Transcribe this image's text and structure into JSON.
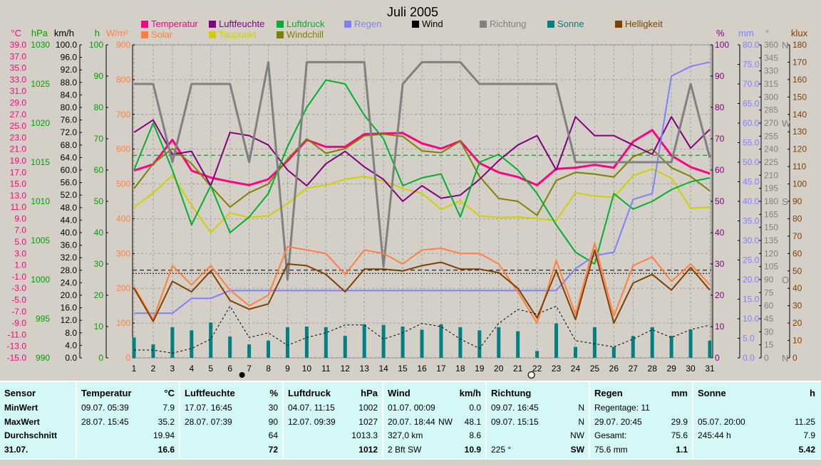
{
  "chart_data": {
    "type": "line",
    "title": "Juli 2005",
    "x": [
      1,
      2,
      3,
      4,
      5,
      6,
      7,
      8,
      9,
      10,
      11,
      12,
      13,
      14,
      15,
      16,
      17,
      18,
      19,
      20,
      21,
      22,
      23,
      24,
      25,
      26,
      27,
      28,
      29,
      30,
      31
    ],
    "x_labels": [
      "1",
      "2",
      "3",
      "4",
      "5",
      "6",
      "7",
      "8",
      "9",
      "10",
      "11",
      "12",
      "13",
      "14",
      "15",
      "16",
      "17",
      "18",
      "19",
      "20",
      "21",
      "22",
      "23",
      "24",
      "25",
      "26",
      "27",
      "28",
      "29",
      "30",
      "31"
    ],
    "legend": [
      {
        "name": "Temperatur",
        "color": "#ff0080"
      },
      {
        "name": "Luftfeuchte",
        "color": "#800080"
      },
      {
        "name": "Luftdruck",
        "color": "#00b030"
      },
      {
        "name": "Regen",
        "color": "#8080ff"
      },
      {
        "name": "Wind",
        "color": "#000000"
      },
      {
        "name": "Richtung",
        "color": "#808080"
      },
      {
        "name": "Sonne",
        "color": "#008080"
      },
      {
        "name": "Helligkeit",
        "color": "#804000"
      },
      {
        "name": "Solar",
        "color": "#ff8040"
      },
      {
        "name": "Taupunkt",
        "color": "#d0d000"
      },
      {
        "name": "Windchill",
        "color": "#808000"
      }
    ],
    "axes": {
      "temp": {
        "label": "°C",
        "color": "#ff0080",
        "min": -15,
        "max": 39,
        "ticks": [
          "39.0",
          "37.0",
          "35.0",
          "33.0",
          "31.0",
          "29.0",
          "27.0",
          "25.0",
          "23.0",
          "21.0",
          "19.0",
          "17.0",
          "15.0",
          "13.0",
          "11.0",
          "9.0",
          "7.0",
          "5.0",
          "3.0",
          "1.0",
          "-1.0",
          "-3.0",
          "-5.0",
          "-7.0",
          "-9.0",
          "-11.0",
          "-13.0",
          "-15.0"
        ]
      },
      "press": {
        "label": "hPa",
        "color": "#00a000",
        "min": 990,
        "max": 1030,
        "ticks": [
          "1030",
          "1025",
          "1020",
          "1015",
          "1010",
          "1005",
          "1000",
          "995",
          "990"
        ]
      },
      "wind": {
        "label": "km/h",
        "color": "#000000",
        "min": 0,
        "max": 100,
        "ticks": [
          "100.0",
          "96.0",
          "92.0",
          "88.0",
          "84.0",
          "80.0",
          "76.0",
          "72.0",
          "68.0",
          "64.0",
          "60.0",
          "56.0",
          "52.0",
          "48.0",
          "44.0",
          "40.0",
          "36.0",
          "32.0",
          "28.0",
          "24.0",
          "20.0",
          "16.0",
          "12.0",
          "8.0",
          "4.0",
          "0.0"
        ]
      },
      "sun": {
        "label": "h",
        "color": "#00a000",
        "min": 0,
        "max": 100,
        "ticks": [
          "100",
          "90",
          "80",
          "70",
          "60",
          "50",
          "40",
          "30",
          "20",
          "10",
          "0"
        ]
      },
      "solar": {
        "label": "W/m²",
        "color": "#ff8040",
        "min": 0,
        "max": 900,
        "ticks": [
          "900",
          "800",
          "700",
          "600",
          "500",
          "400",
          "300",
          "200",
          "100",
          "0"
        ]
      },
      "hum": {
        "label": "%",
        "color": "#800080",
        "min": 0,
        "max": 100,
        "ticks": [
          "100",
          "90",
          "80",
          "70",
          "60",
          "50",
          "40",
          "30",
          "20",
          "10",
          "0"
        ]
      },
      "rain": {
        "label": "mm",
        "color": "#8080ff",
        "min": 0,
        "max": 80,
        "ticks": [
          "80.0",
          "75.0",
          "70.0",
          "65.0",
          "60.0",
          "55.0",
          "50.0",
          "45.0",
          "40.0",
          "35.0",
          "30.0",
          "25.0",
          "20.0",
          "15.0",
          "10.0",
          "5.0",
          "0.0"
        ]
      },
      "dir": {
        "label": "°",
        "color": "#808080",
        "min": 0,
        "max": 360,
        "ticks": [
          "360",
          "345",
          "330",
          "315",
          "300",
          "285",
          "270",
          "255",
          "240",
          "225",
          "210",
          "195",
          "180",
          "165",
          "150",
          "135",
          "120",
          "105",
          "90",
          "75",
          "60",
          "45",
          "30",
          "15",
          "0"
        ],
        "compass": [
          {
            "label": "N",
            "value": 360
          },
          {
            "label": "W",
            "value": 270
          },
          {
            "label": "S",
            "value": 180
          },
          {
            "label": "O",
            "value": 90
          },
          {
            "label": "N",
            "value": 0
          }
        ]
      },
      "lux": {
        "label": "klux",
        "color": "#804000",
        "min": 0,
        "max": 180,
        "ticks": [
          "180",
          "170",
          "160",
          "150",
          "140",
          "130",
          "120",
          "110",
          "100",
          "90",
          "80",
          "70",
          "60",
          "50",
          "40",
          "30",
          "20",
          "10",
          "0"
        ]
      }
    },
    "series": [
      {
        "name": "Temperatur",
        "axis": "temp",
        "color": "#ff0080",
        "width": 3,
        "values": [
          17.3,
          18.4,
          22.6,
          17.3,
          16.1,
          15.4,
          14.8,
          15.8,
          19.0,
          22.6,
          21.4,
          21.4,
          23.6,
          23.7,
          23.8,
          22.0,
          21.1,
          22.4,
          18.6,
          17.0,
          16.2,
          14.8,
          17.6,
          17.8,
          18.3,
          17.8,
          22.3,
          24.3,
          19.9,
          17.9,
          16.8
        ]
      },
      {
        "name": "Taupunkt",
        "axis": "temp",
        "color": "#d0d000",
        "width": 2,
        "values": [
          11.0,
          13.4,
          16.5,
          11.3,
          6.6,
          10.0,
          9.2,
          9.5,
          11.6,
          14.3,
          14.8,
          15.8,
          16.3,
          15.5,
          14.2,
          13.4,
          10.6,
          12.1,
          9.5,
          9.2,
          9.3,
          9.0,
          8.7,
          13.5,
          12.9,
          12.7,
          16.4,
          17.6,
          16.0,
          10.8,
          11.0
        ]
      },
      {
        "name": "Windchill",
        "axis": "temp",
        "color": "#808000",
        "width": 2,
        "values": [
          14.2,
          18.5,
          21.1,
          18.5,
          14.6,
          11.0,
          13.5,
          15.0,
          19.3,
          22.8,
          20.3,
          21.1,
          23.3,
          23.6,
          23.2,
          20.7,
          20.4,
          22.4,
          16.3,
          12.5,
          12.0,
          9.6,
          15.6,
          17.0,
          16.7,
          16.2,
          19.7,
          21.0,
          17.8,
          16.3,
          13.8
        ]
      },
      {
        "name": "Luftfeuchte",
        "axis": "hum",
        "color": "#800080",
        "width": 2,
        "values": [
          72,
          76,
          65,
          66,
          55,
          72,
          71,
          68,
          60,
          55,
          62,
          66,
          61,
          57,
          50,
          55,
          51,
          52,
          57,
          63,
          68,
          71,
          60,
          77,
          71,
          71,
          68,
          65,
          77,
          67,
          73
        ]
      },
      {
        "name": "Luftdruck",
        "axis": "press",
        "color": "#00b030",
        "width": 2,
        "values": [
          1014,
          1020,
          1014,
          1007,
          1012,
          1006,
          1008,
          1011,
          1017,
          1022,
          1025.5,
          1025,
          1021,
          1018,
          1012,
          1013,
          1013.5,
          1008,
          1015,
          1016,
          1014,
          1011,
          1007,
          1003.5,
          1002,
          1011,
          1009,
          1010,
          1011.5,
          1012.5,
          1013
        ]
      },
      {
        "name": "Regen",
        "axis": "rain",
        "color": "#8080ff",
        "width": 2,
        "values": [
          11.4,
          11.4,
          11.4,
          15.2,
          15.2,
          17.2,
          17.2,
          17.2,
          17.2,
          17.2,
          17.2,
          17.2,
          17.2,
          17.2,
          17.2,
          17.2,
          17.2,
          17.2,
          17.2,
          17.2,
          17.2,
          17.2,
          17.2,
          22.8,
          26.1,
          27.0,
          40.5,
          42.0,
          72.0,
          74.5,
          75.6
        ]
      },
      {
        "name": "Richtung",
        "axis": "dir",
        "color": "#808080",
        "width": 3,
        "values": [
          315,
          315,
          225,
          315,
          315,
          315,
          225,
          340,
          90,
          340,
          340,
          340,
          340,
          105,
          315,
          340,
          340,
          340,
          315,
          315,
          315,
          315,
          315,
          225,
          225,
          225,
          225,
          225,
          225,
          315,
          230
        ]
      },
      {
        "name": "Solar",
        "axis": "solar",
        "color": "#ff8040",
        "width": 2,
        "values": [
          205,
          110,
          265,
          210,
          265,
          195,
          150,
          180,
          320,
          310,
          300,
          240,
          310,
          300,
          270,
          310,
          315,
          300,
          300,
          270,
          190,
          100,
          280,
          125,
          330,
          120,
          265,
          290,
          220,
          270,
          210
        ]
      },
      {
        "name": "Helligkeit",
        "axis": "lux",
        "color": "#804000",
        "width": 2,
        "values": [
          40,
          21,
          44,
          38,
          50,
          33,
          28,
          31,
          54,
          53,
          48,
          38,
          51,
          51,
          50,
          53,
          55,
          51,
          51,
          49,
          40,
          23,
          50,
          22,
          62,
          20,
          43,
          48,
          39,
          52,
          39
        ]
      },
      {
        "name": "Wind",
        "axis": "wind",
        "color": "#000000",
        "width": 1,
        "dashed": true,
        "values": [
          2.5,
          2.5,
          1.5,
          3.0,
          6.0,
          16.5,
          6.5,
          8.0,
          4.0,
          6.5,
          8.0,
          10.5,
          10.5,
          6.0,
          8.0,
          11.0,
          10.0,
          6.0,
          3.0,
          11.0,
          15.5,
          14.0,
          16.5,
          5.5,
          4.5,
          3.5,
          6.0,
          9.0,
          6.5,
          9.0,
          10.5
        ]
      },
      {
        "name": "Sonne",
        "axis": "sun",
        "color": "#008080",
        "type": "bar",
        "values": [
          6.5,
          4.3,
          9.8,
          8.8,
          11.3,
          6.8,
          4.3,
          5.5,
          9.8,
          10.0,
          9.8,
          7.0,
          10.7,
          10.5,
          10.0,
          9.0,
          10.7,
          9.8,
          8.8,
          9.8,
          8.5,
          2.2,
          11.0,
          3.5,
          9.8,
          3.5,
          7.0,
          9.8,
          7.0,
          9.0,
          5.5
        ]
      }
    ],
    "reference_lines": [
      {
        "axis": "temp",
        "value": 19.94,
        "color": "#008000",
        "style": "dashed"
      },
      {
        "axis": "hum",
        "value": 28,
        "color": "#000000",
        "style": "dashed"
      },
      {
        "axis": "hum",
        "value": 27,
        "color": "#000000",
        "style": "dotted"
      }
    ],
    "moon_markers": [
      {
        "type": "new-moon",
        "x": 7,
        "symbol": "●"
      },
      {
        "type": "full-moon",
        "x": 22,
        "symbol": "○"
      }
    ]
  },
  "stats": {
    "columns": [
      {
        "header": "Sensor",
        "unit": "",
        "rows": [
          {
            "l": "MinWert",
            "r": ""
          },
          {
            "l": "MaxWert",
            "r": ""
          },
          {
            "l": "Durchschnitt",
            "r": ""
          },
          {
            "l": "31.07.",
            "r": ""
          }
        ],
        "labels": true
      },
      {
        "header": "Temperatur",
        "unit": "°C",
        "rows": [
          {
            "l": "09.07. 05:39",
            "r": "7.9"
          },
          {
            "l": "28.07. 15:45",
            "r": "35.2"
          },
          {
            "l": "",
            "r": "19.94"
          },
          {
            "l": "",
            "r": "16.6"
          }
        ]
      },
      {
        "header": "Luftfeuchte",
        "unit": "%",
        "rows": [
          {
            "l": "17.07. 16:45",
            "r": "30"
          },
          {
            "l": "28.07. 07:39",
            "r": "90"
          },
          {
            "l": "",
            "r": "64"
          },
          {
            "l": "",
            "r": "72"
          }
        ]
      },
      {
        "header": "Luftdruck",
        "unit": "hPa",
        "rows": [
          {
            "l": "04.07. 11:15",
            "r": "1002"
          },
          {
            "l": "12.07. 09:39",
            "r": "1027"
          },
          {
            "l": "",
            "r": "1013.3"
          },
          {
            "l": "",
            "r": "1012"
          }
        ]
      },
      {
        "header": "Wind",
        "unit": "km/h",
        "rows": [
          {
            "l": "01.07. 00:09",
            "r": "0.0"
          },
          {
            "l": "20.07. 18:44",
            "m": "NW",
            "r": "48.1"
          },
          {
            "l": "327,0 km",
            "r": "8.6"
          },
          {
            "l": "2 Bft SW",
            "r": "10.9"
          }
        ]
      },
      {
        "header": "Richtung",
        "unit": "",
        "rows": [
          {
            "l": "09.07. 16:45",
            "r": "N"
          },
          {
            "l": "09.07. 15:15",
            "r": "N"
          },
          {
            "l": "",
            "r": "NW"
          },
          {
            "l": "225 °",
            "r": "SW"
          }
        ]
      },
      {
        "header": "Regen",
        "unit": "mm",
        "rows": [
          {
            "l": "Regentage: 11",
            "r": ""
          },
          {
            "l": "29.07. 20:45",
            "r": "29.9"
          },
          {
            "l": "Gesamt:",
            "r": "75.6"
          },
          {
            "l": "75.6 mm",
            "r": "1.1"
          }
        ]
      },
      {
        "header": "Sonne",
        "unit": "h",
        "rows": [
          {
            "l": "",
            "r": ""
          },
          {
            "l": "05.07. 20:00",
            "r": "11.25"
          },
          {
            "l": "245:44 h",
            "r": "7.9"
          },
          {
            "l": "",
            "r": "5.42"
          }
        ]
      }
    ]
  }
}
